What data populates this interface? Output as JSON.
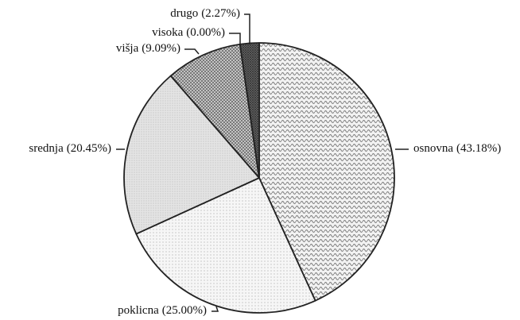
{
  "chart_data": {
    "type": "pie",
    "categories": [
      "osnovna",
      "poklicna",
      "srednja",
      "višja",
      "visoka",
      "drugo"
    ],
    "values": [
      43.18,
      25.0,
      20.45,
      9.09,
      0.0,
      2.27
    ],
    "value_labels": [
      "(43.18%)",
      "(25.00%)",
      "(20.45%)",
      "(9.09%)",
      "(0.00%)",
      "(2.27%)"
    ]
  }
}
